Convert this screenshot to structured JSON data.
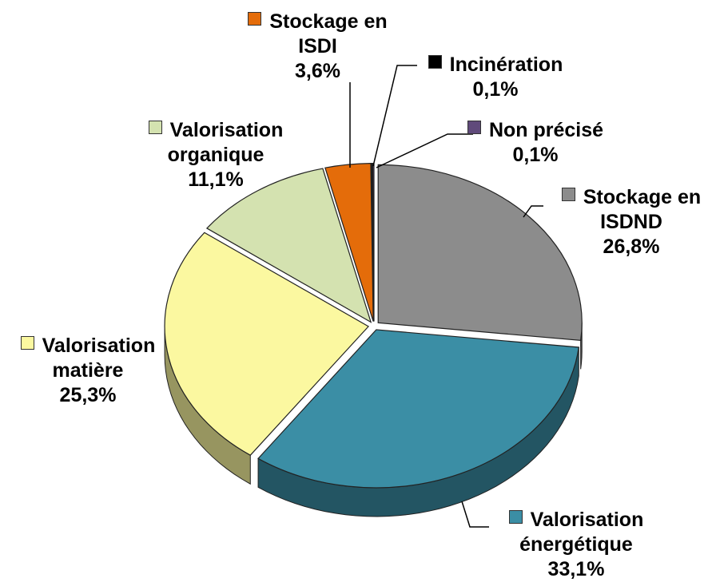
{
  "chart_data": {
    "type": "pie",
    "categories": [
      "Stockage en ISDND",
      "Valorisation énergétique",
      "Valorisation matière",
      "Valorisation organique",
      "Stockage en ISDI",
      "Incinération",
      "Non précisé"
    ],
    "values": [
      26.8,
      33.1,
      25.3,
      11.1,
      3.6,
      0.1,
      0.1
    ],
    "value_labels": [
      "26,8%",
      "33,1%",
      "25,3%",
      "11,1%",
      "3,6%",
      "0,1%",
      "0,1%"
    ],
    "colors": [
      "#8c8c8c",
      "#3b8ea5",
      "#fbf8a0",
      "#d4e2b0",
      "#e46c0a",
      "#000000",
      "#604a7b"
    ]
  }
}
